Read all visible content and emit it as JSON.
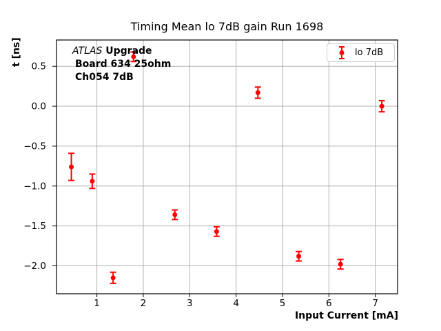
{
  "figure": {
    "title": "Timing Mean lo 7dB gain Run 1698"
  },
  "annotation": {
    "experiment": "ATLAS",
    "experiment_suffix": "Upgrade",
    "line2": "Board 634 25ohm",
    "line3": "Ch054 7dB"
  },
  "legend": {
    "label": "lo 7dB",
    "marker": "errorbar-circle-icon",
    "position": "upper right"
  },
  "chart_data": {
    "type": "scatter",
    "title": "Timing Mean lo 7dB gain Run 1698",
    "xlabel": "Input Current [mA]",
    "ylabel": "t [ns]",
    "xlim": [
      0.13,
      7.48
    ],
    "ylim": [
      -2.35,
      0.83
    ],
    "xticks": [
      1,
      2,
      3,
      4,
      5,
      6,
      7
    ],
    "yticks": [
      0.5,
      0.0,
      -0.5,
      -1.0,
      -1.5,
      -2.0
    ],
    "grid": true,
    "legend_position": "upper right",
    "series": [
      {
        "name": "lo 7dB",
        "color": "#ff0000",
        "marker": "o",
        "points": [
          {
            "x": 0.45,
            "y": -0.76,
            "yerr": 0.17
          },
          {
            "x": 0.9,
            "y": -0.94,
            "yerr": 0.09
          },
          {
            "x": 1.35,
            "y": -2.15,
            "yerr": 0.07
          },
          {
            "x": 1.79,
            "y": 0.62,
            "yerr": 0.06
          },
          {
            "x": 2.68,
            "y": -1.36,
            "yerr": 0.06
          },
          {
            "x": 3.58,
            "y": -1.57,
            "yerr": 0.06
          },
          {
            "x": 4.47,
            "y": 0.17,
            "yerr": 0.07
          },
          {
            "x": 5.35,
            "y": -1.88,
            "yerr": 0.06
          },
          {
            "x": 6.25,
            "y": -1.98,
            "yerr": 0.06
          },
          {
            "x": 7.14,
            "y": 0.0,
            "yerr": 0.07
          }
        ]
      }
    ],
    "colors": {
      "series": "#ff0000",
      "grid": "#b0b0b0",
      "axis": "#000000",
      "background": "#ffffff",
      "text": "#000000"
    }
  }
}
